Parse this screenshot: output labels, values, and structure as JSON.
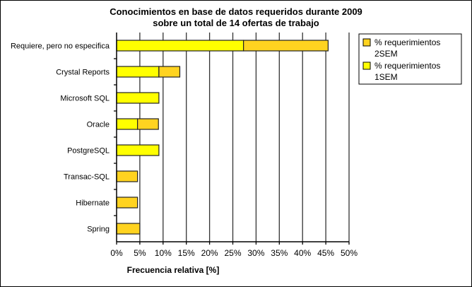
{
  "chart_data": {
    "type": "bar",
    "orientation": "horizontal",
    "stacked": true,
    "title": [
      "Conocimientos en base de datos requeridos durante 2009",
      "sobre un total de 14 ofertas de trabajo"
    ],
    "xlabel": "Frecuencia relativa [%]",
    "ylabel": "",
    "xlim": [
      0,
      50
    ],
    "xticks": [
      "0%",
      "5%",
      "10%",
      "15%",
      "20%",
      "25%",
      "30%",
      "35%",
      "40%",
      "45%",
      "50%"
    ],
    "grid": "vertical",
    "legend_position": "right",
    "categories": [
      "Requiere, pero no especifica",
      "Crystal Reports",
      "Microsoft SQL",
      "Oracle",
      "PostgreSQL",
      "Transac-SQL",
      "Hibernate",
      "Spring"
    ],
    "series": [
      {
        "name": "% requerimientos 1SEM",
        "legend_lines": [
          "% requerimientos",
          "1SEM"
        ],
        "color": "#FFFF00",
        "values": [
          27.3,
          9.1,
          9.1,
          4.5,
          9.1,
          0,
          0,
          0
        ]
      },
      {
        "name": "% requerimientos 2SEM",
        "legend_lines": [
          "% requerimientos",
          "2SEM"
        ],
        "color": "#FFD320",
        "values": [
          18.2,
          4.5,
          0,
          4.5,
          0,
          4.5,
          4.5,
          5.0
        ]
      }
    ],
    "legend_order": [
      1,
      0
    ]
  }
}
